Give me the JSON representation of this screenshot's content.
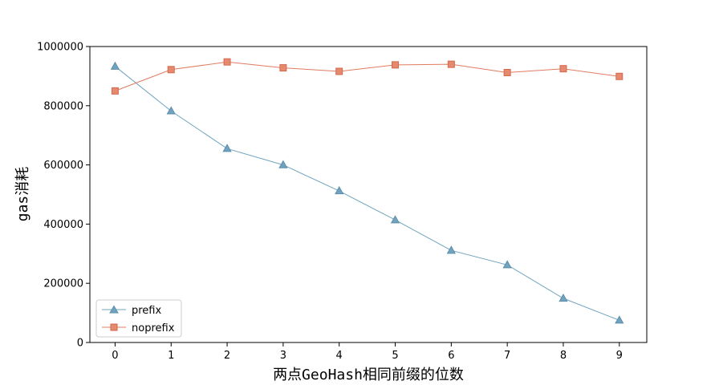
{
  "chart_data": {
    "type": "line",
    "title": "",
    "xlabel": "两点GeoHash相同前缀的位数",
    "ylabel": "gas消耗",
    "x": [
      0,
      1,
      2,
      3,
      4,
      5,
      6,
      7,
      8,
      9
    ],
    "xlim": [
      -0.45,
      9.49
    ],
    "ylim": [
      0,
      1000000
    ],
    "x_ticks": [
      "0",
      "1",
      "2",
      "3",
      "4",
      "5",
      "6",
      "7",
      "8",
      "9"
    ],
    "y_ticks": [
      0,
      200000,
      400000,
      600000,
      800000,
      1000000
    ],
    "y_tick_labels": [
      "0",
      "200000",
      "400000",
      "600000",
      "800000",
      "1000000"
    ],
    "grid": false,
    "legend_position": "lower-left",
    "series": [
      {
        "name": "prefix",
        "marker": "triangle",
        "color": "#6fa3bf",
        "values": [
          933000,
          782000,
          655000,
          600000,
          512000,
          414000,
          311000,
          262000,
          149000,
          75000
        ]
      },
      {
        "name": "noprefix",
        "marker": "square",
        "color": "#e07b60",
        "values": [
          850000,
          922000,
          948000,
          928000,
          916000,
          938000,
          940000,
          912000,
          925000,
          899000
        ]
      }
    ]
  }
}
